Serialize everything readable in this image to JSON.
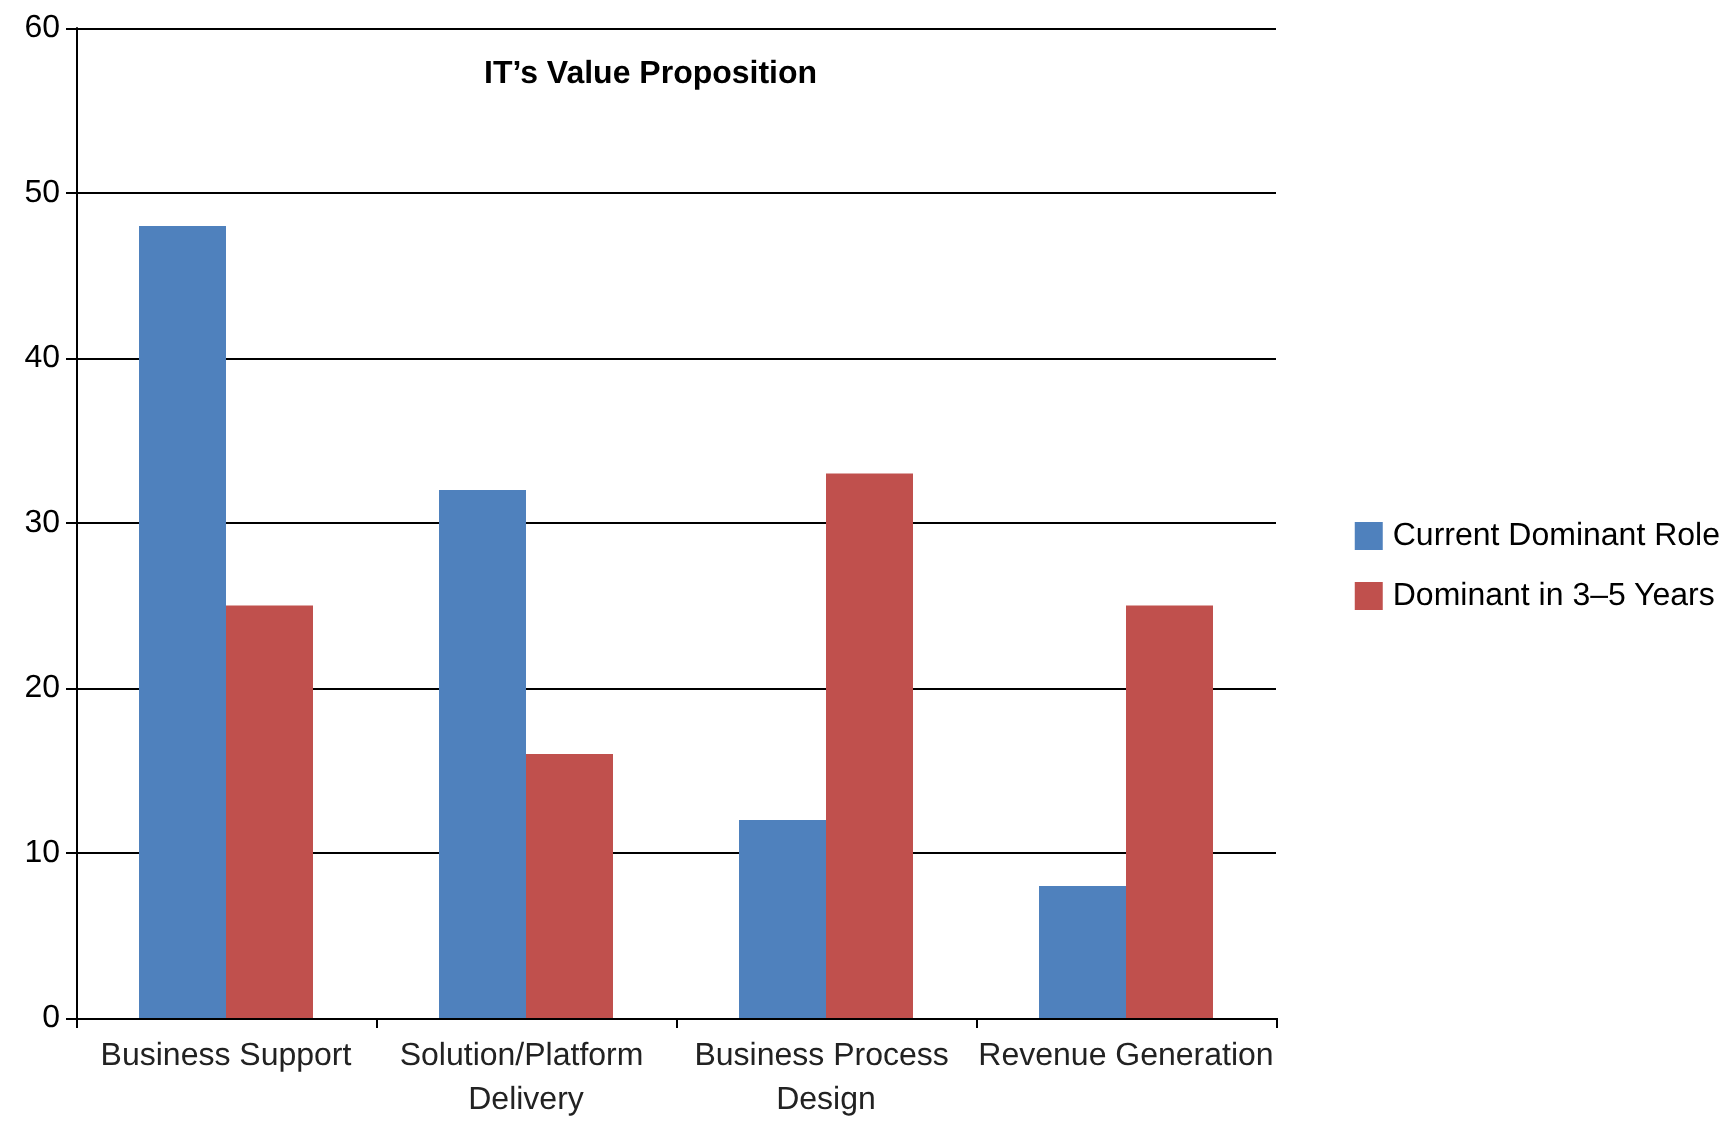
{
  "chart_data": {
    "type": "bar",
    "title": "IT’s Value Proposition",
    "categories": [
      "Business Support",
      "Solution/Platform Delivery",
      "Business Process Design",
      "Revenue Generation"
    ],
    "series": [
      {
        "name": "Current Dominant Role",
        "color": "#4f81bd",
        "values": [
          48,
          32,
          12,
          8
        ]
      },
      {
        "name": "Dominant in 3–5 Years",
        "color": "#c0504d",
        "values": [
          25,
          16,
          33,
          25
        ]
      }
    ],
    "ylim": [
      0,
      60
    ],
    "yticks": [
      0,
      10,
      20,
      30,
      40,
      50,
      60
    ],
    "grid": "y",
    "legend": "right"
  }
}
